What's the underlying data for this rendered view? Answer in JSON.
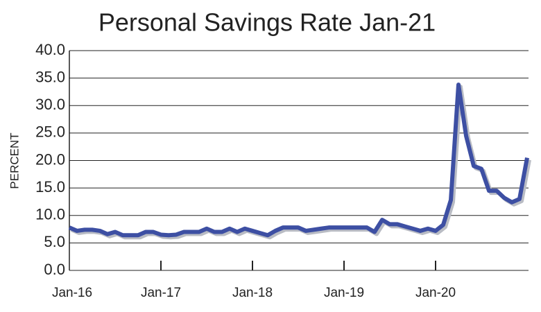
{
  "chart_data": {
    "type": "line",
    "title": "Personal Savings Rate Jan-21",
    "y_label": "PERCENT",
    "categories": [
      "Jan-16",
      null,
      null,
      null,
      null,
      null,
      null,
      null,
      null,
      null,
      null,
      null,
      "Jan-17",
      null,
      null,
      null,
      null,
      null,
      null,
      null,
      null,
      null,
      null,
      null,
      "Jan-18",
      null,
      null,
      null,
      null,
      null,
      null,
      null,
      null,
      null,
      null,
      null,
      "Jan-19",
      null,
      null,
      null,
      null,
      null,
      null,
      null,
      null,
      null,
      null,
      null,
      "Jan-20",
      null,
      null,
      null,
      null,
      null,
      null,
      null,
      null,
      null,
      null,
      null,
      null
    ],
    "series": [
      {
        "name": "Personal Savings Rate",
        "color": "#3d4fa3",
        "values": [
          7.8,
          7.2,
          7.4,
          7.4,
          7.2,
          6.6,
          7.0,
          6.4,
          6.4,
          6.4,
          7.0,
          7.0,
          6.5,
          6.4,
          6.5,
          7.0,
          7.0,
          7.0,
          7.6,
          7.0,
          7.0,
          7.6,
          7.0,
          7.6,
          7.2,
          6.8,
          6.4,
          7.2,
          7.8,
          7.8,
          7.8,
          7.2,
          7.4,
          7.6,
          7.8,
          7.8,
          7.8,
          7.8,
          7.8,
          7.8,
          7.0,
          9.2,
          8.4,
          8.4,
          8.0,
          7.6,
          7.2,
          7.6,
          7.2,
          8.3,
          12.8,
          33.8,
          24.5,
          19.0,
          18.5,
          14.5,
          14.5,
          13.2,
          12.4,
          13.0,
          20.5
        ]
      }
    ],
    "ylim": [
      0,
      40
    ],
    "yticks": [
      {
        "value": 0,
        "label": "0.0"
      },
      {
        "value": 5,
        "label": "5.0"
      },
      {
        "value": 10,
        "label": "10.0"
      },
      {
        "value": 15,
        "label": "15.0"
      },
      {
        "value": 20,
        "label": "20.0"
      },
      {
        "value": 25,
        "label": "25.0"
      },
      {
        "value": 30,
        "label": "30.0"
      },
      {
        "value": 35,
        "label": "35.0"
      },
      {
        "value": 40,
        "label": "40.0"
      }
    ],
    "grid": true
  }
}
